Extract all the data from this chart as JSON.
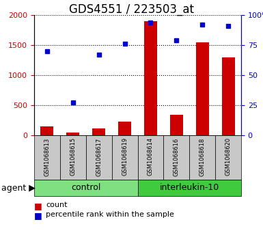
{
  "title": "GDS4551 / 223503_at",
  "samples": [
    "GSM1068613",
    "GSM1068615",
    "GSM1068617",
    "GSM1068619",
    "GSM1068614",
    "GSM1068616",
    "GSM1068618",
    "GSM1068620"
  ],
  "counts": [
    150,
    40,
    110,
    230,
    1900,
    340,
    1540,
    1300
  ],
  "percentile_ranks": [
    70,
    27,
    67,
    76,
    94,
    79,
    92,
    91
  ],
  "groups": [
    {
      "label": "control",
      "start": 0,
      "end": 4,
      "color": "#7EE07E"
    },
    {
      "label": "interleukin-10",
      "start": 4,
      "end": 8,
      "color": "#3ECC3E"
    }
  ],
  "left_ylim": [
    0,
    2000
  ],
  "left_yticks": [
    0,
    500,
    1000,
    1500,
    2000
  ],
  "left_yticklabels": [
    "0",
    "500",
    "1000",
    "1500",
    "2000"
  ],
  "right_ylim": [
    0,
    100
  ],
  "right_yticks": [
    0,
    25,
    50,
    75,
    100
  ],
  "right_yticklabels": [
    "0",
    "25",
    "50",
    "75",
    "100%"
  ],
  "bar_color": "#CC0000",
  "dot_color": "#0000CC",
  "bar_width": 0.5,
  "title_fontsize": 12,
  "tick_fontsize": 8,
  "sample_fontsize": 6,
  "group_fontsize": 9,
  "agent_fontsize": 9,
  "legend_fontsize": 8,
  "left_tick_color": "#CC0000",
  "right_tick_color": "#0000CC",
  "bg_color": "#c8c8c8",
  "plot_bg_color": "#ffffff"
}
